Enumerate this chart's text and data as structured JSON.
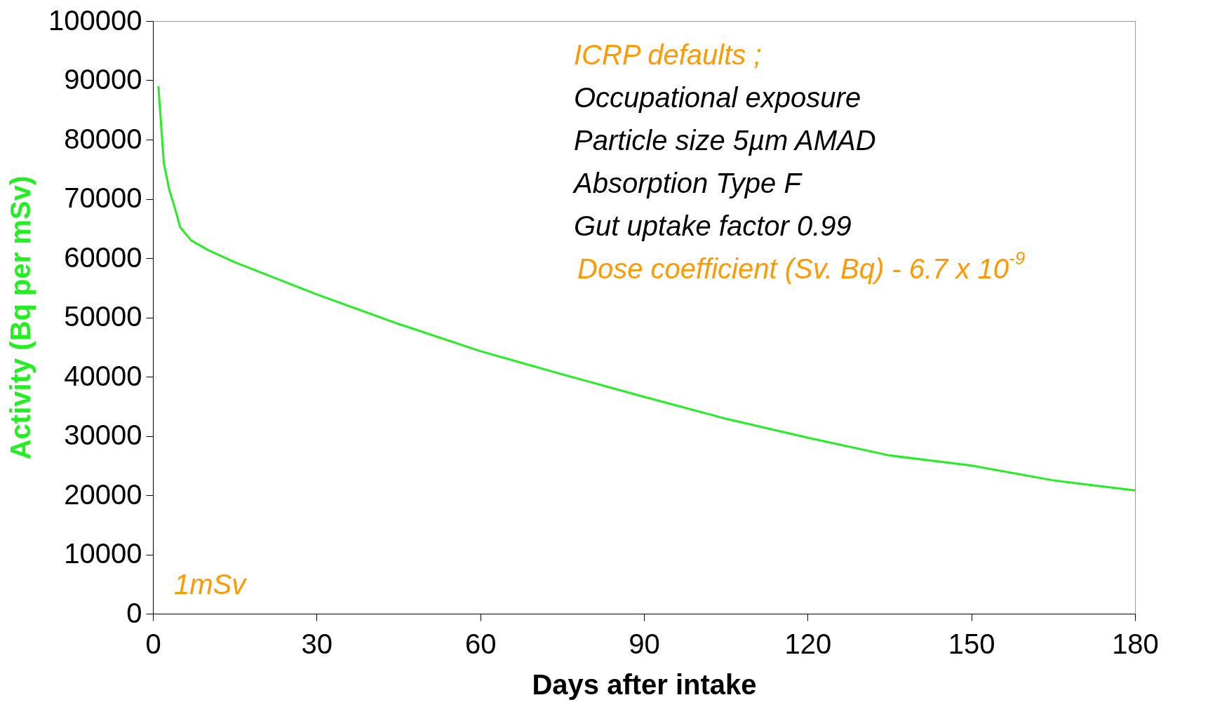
{
  "chart_data": {
    "type": "line",
    "xlabel": "Days after intake",
    "ylabel": "Activity (Bq per mSv)",
    "x": [
      1,
      2,
      3,
      4,
      5,
      7,
      10,
      15,
      20,
      30,
      45,
      60,
      75,
      90,
      105,
      120,
      135,
      150,
      165,
      180
    ],
    "series": [
      {
        "color": "#22ee22",
        "values": [
          89000,
          76000,
          71500,
          68500,
          65200,
          63000,
          61400,
          59300,
          57500,
          53900,
          48900,
          44300,
          40400,
          36600,
          32900,
          29700,
          26700,
          25000,
          22500,
          20800
        ]
      }
    ],
    "xlim": [
      0,
      180
    ],
    "xticks": [
      0,
      30,
      60,
      90,
      120,
      150,
      180
    ],
    "ylim": [
      0,
      100000
    ],
    "yticks": [
      0,
      10000,
      20000,
      30000,
      40000,
      50000,
      60000,
      70000,
      80000,
      90000,
      100000
    ],
    "grid": false,
    "marker": "none",
    "line_style": "solid",
    "annotations": [
      "ICRP defaults ;",
      "Occupational exposure",
      "Particle size  5µm  AMAD",
      "Absorption  Type F",
      "Gut uptake factor  0.99",
      "Dose coefficient (Sv. Bq) - 6.7 x 10$^{-9}$",
      "1mSv"
    ]
  }
}
